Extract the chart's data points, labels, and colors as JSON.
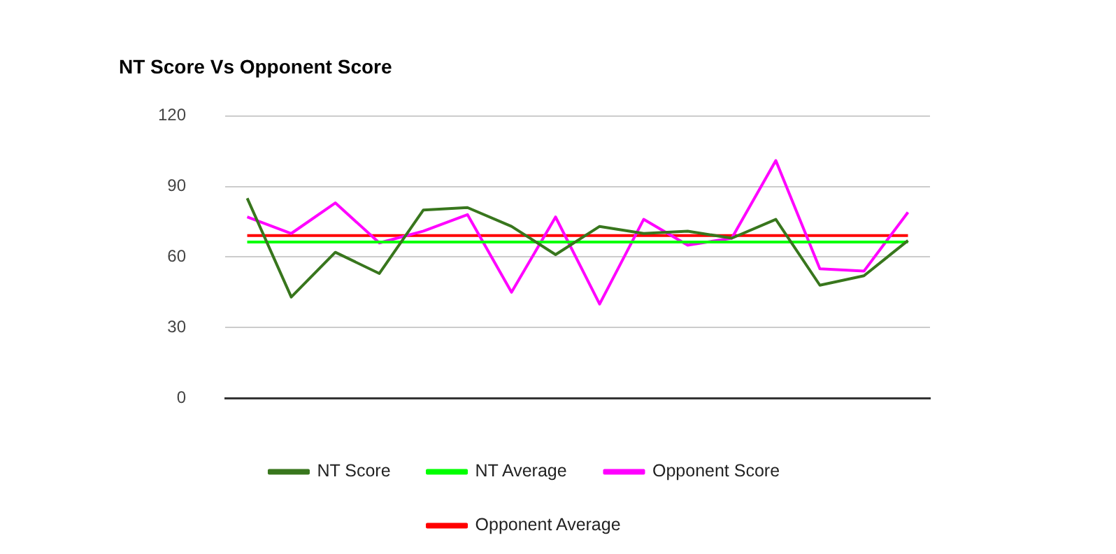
{
  "chart_data": {
    "type": "line",
    "title": "NT Score Vs Opponent Score",
    "categories": [
      null,
      null,
      null,
      null,
      null,
      null,
      null,
      null,
      null,
      null,
      null,
      null,
      null,
      null,
      null,
      null
    ],
    "series": [
      {
        "name": "NT Score",
        "color": "#38761d",
        "values": [
          85,
          43,
          62,
          53,
          80,
          81,
          73,
          61,
          73,
          70,
          71,
          68,
          76,
          48,
          52,
          67
        ]
      },
      {
        "name": "NT Average",
        "color": "#00ff00",
        "values": [
          66.4,
          66.4,
          66.4,
          66.4,
          66.4,
          66.4,
          66.4,
          66.4,
          66.4,
          66.4,
          66.4,
          66.4,
          66.4,
          66.4,
          66.4,
          66.4
        ]
      },
      {
        "name": "Opponent Score",
        "color": "#ff00ff",
        "values": [
          77,
          70,
          83,
          66,
          71,
          78,
          45,
          77,
          40,
          76,
          65,
          68,
          101,
          55,
          54,
          79
        ]
      },
      {
        "name": "Opponent Average",
        "color": "#ff0000",
        "values": [
          69.1,
          69.1,
          69.1,
          69.1,
          69.1,
          69.1,
          69.1,
          69.1,
          69.1,
          69.1,
          69.1,
          69.1,
          69.1,
          69.1,
          69.1,
          69.1
        ]
      }
    ],
    "ylim": [
      0,
      120
    ],
    "yticks": [
      0,
      30,
      60,
      90,
      120
    ],
    "grid": "y",
    "legend": "bottom",
    "marker": "none",
    "line_style": "solid"
  }
}
